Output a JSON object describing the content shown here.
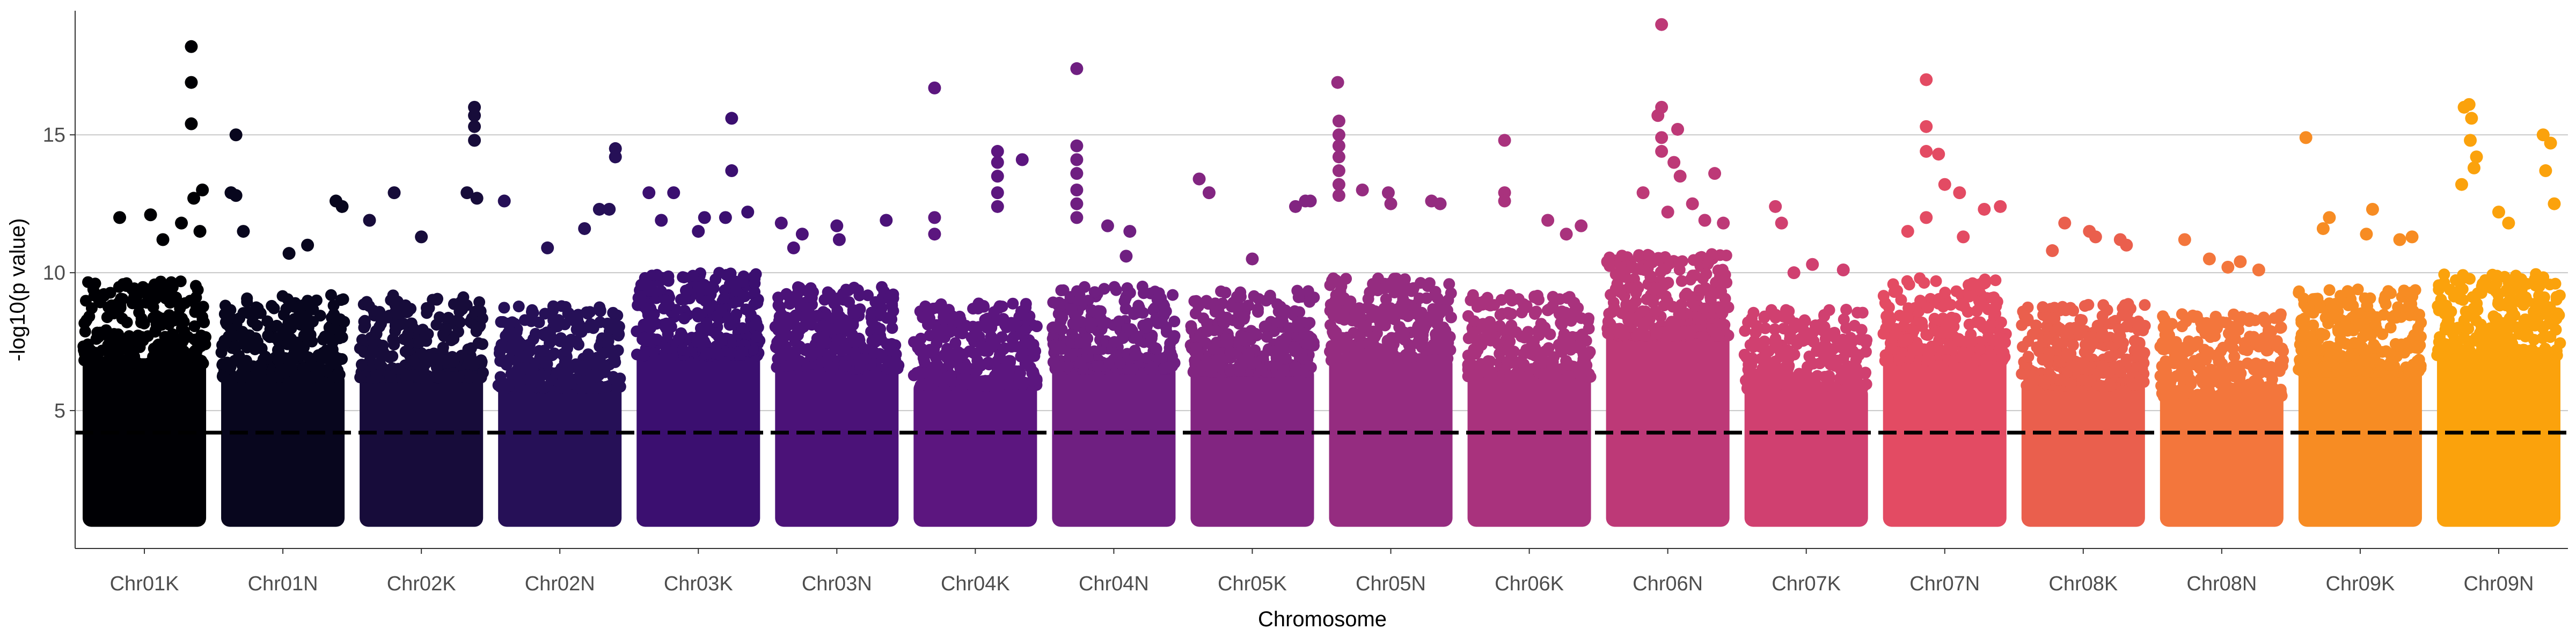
{
  "chart_data": {
    "type": "scatter",
    "subtype": "manhattan",
    "title": "",
    "xlabel": "Chromosome",
    "ylabel": "-log10(p value)",
    "ylim": [
      0,
      19.5
    ],
    "yticks": [
      5,
      10,
      15
    ],
    "grid": {
      "horizontal_major": true,
      "vertical": false
    },
    "legend": "none",
    "threshold": {
      "value": 4.2,
      "style": "dashed",
      "color": "#000000"
    },
    "categories": [
      "Chr01K",
      "Chr01N",
      "Chr02K",
      "Chr02N",
      "Chr03K",
      "Chr03N",
      "Chr04K",
      "Chr04N",
      "Chr05K",
      "Chr05N",
      "Chr06K",
      "Chr06N",
      "Chr07K",
      "Chr07N",
      "Chr08K",
      "Chr08N",
      "Chr09K",
      "Chr09N"
    ],
    "series": [
      {
        "category": "Chr01K",
        "color": "#000004",
        "band_top": 9.5,
        "floor": 1.0,
        "peaks": [
          [
            0.88,
            18.2
          ],
          [
            0.88,
            16.9
          ],
          [
            0.88,
            15.4
          ],
          [
            0.55,
            12.1
          ],
          [
            0.9,
            12.7
          ],
          [
            0.97,
            13.0
          ],
          [
            0.8,
            11.8
          ],
          [
            0.3,
            12.0
          ],
          [
            0.65,
            11.2
          ],
          [
            0.95,
            11.5
          ]
        ]
      },
      {
        "category": "Chr01N",
        "color": "#08061e",
        "band_top": 9.0,
        "floor": 1.0,
        "peaks": [
          [
            0.12,
            15.0
          ],
          [
            0.08,
            12.9
          ],
          [
            0.12,
            12.8
          ],
          [
            0.18,
            11.5
          ],
          [
            0.93,
            12.6
          ],
          [
            0.98,
            12.4
          ],
          [
            0.55,
            10.7
          ],
          [
            0.7,
            11.0
          ]
        ]
      },
      {
        "category": "Chr02K",
        "color": "#170c3a",
        "band_top": 9.0,
        "floor": 1.0,
        "peaks": [
          [
            0.93,
            16.0
          ],
          [
            0.93,
            15.7
          ],
          [
            0.93,
            15.3
          ],
          [
            0.93,
            14.8
          ],
          [
            0.28,
            12.9
          ],
          [
            0.08,
            11.9
          ],
          [
            0.87,
            12.9
          ],
          [
            0.95,
            12.7
          ],
          [
            0.5,
            11.3
          ]
        ]
      },
      {
        "category": "Chr02N",
        "color": "#261057",
        "band_top": 8.6,
        "floor": 1.0,
        "peaks": [
          [
            0.95,
            14.5
          ],
          [
            0.95,
            14.2
          ],
          [
            0.05,
            12.6
          ],
          [
            0.82,
            12.3
          ],
          [
            0.9,
            12.3
          ],
          [
            0.7,
            11.6
          ],
          [
            0.4,
            10.9
          ]
        ]
      },
      {
        "category": "Chr03K",
        "color": "#3b0f70",
        "band_top": 9.8,
        "floor": 1.0,
        "peaks": [
          [
            0.77,
            15.6
          ],
          [
            0.77,
            13.7
          ],
          [
            0.1,
            12.9
          ],
          [
            0.3,
            12.9
          ],
          [
            0.55,
            12.0
          ],
          [
            0.72,
            12.0
          ],
          [
            0.9,
            12.2
          ],
          [
            0.5,
            11.5
          ],
          [
            0.2,
            11.9
          ]
        ]
      },
      {
        "category": "Chr03N",
        "color": "#4b1278",
        "band_top": 9.3,
        "floor": 1.0,
        "peaks": [
          [
            0.05,
            11.8
          ],
          [
            0.22,
            11.4
          ],
          [
            0.5,
            11.7
          ],
          [
            0.9,
            11.9
          ],
          [
            0.52,
            11.2
          ],
          [
            0.15,
            10.9
          ]
        ]
      },
      {
        "category": "Chr04K",
        "color": "#5c167f",
        "band_top": 8.7,
        "floor": 1.0,
        "peaks": [
          [
            0.17,
            16.7
          ],
          [
            0.68,
            14.4
          ],
          [
            0.68,
            14.0
          ],
          [
            0.68,
            13.5
          ],
          [
            0.68,
            12.9
          ],
          [
            0.68,
            12.4
          ],
          [
            0.88,
            14.1
          ],
          [
            0.17,
            12.0
          ],
          [
            0.17,
            11.4
          ]
        ]
      },
      {
        "category": "Chr04N",
        "color": "#6f1f81",
        "band_top": 9.3,
        "floor": 1.0,
        "peaks": [
          [
            0.2,
            17.4
          ],
          [
            0.2,
            14.6
          ],
          [
            0.2,
            14.1
          ],
          [
            0.2,
            13.6
          ],
          [
            0.2,
            13.0
          ],
          [
            0.2,
            12.5
          ],
          [
            0.2,
            12.0
          ],
          [
            0.45,
            11.7
          ],
          [
            0.63,
            11.5
          ],
          [
            0.6,
            10.6
          ]
        ]
      },
      {
        "category": "Chr05K",
        "color": "#822581",
        "band_top": 9.2,
        "floor": 1.0,
        "peaks": [
          [
            0.07,
            13.4
          ],
          [
            0.15,
            12.9
          ],
          [
            0.93,
            12.6
          ],
          [
            0.97,
            12.6
          ],
          [
            0.85,
            12.4
          ],
          [
            0.5,
            10.5
          ]
        ]
      },
      {
        "category": "Chr05N",
        "color": "#952c80",
        "band_top": 9.6,
        "floor": 1.0,
        "peaks": [
          [
            0.07,
            16.9
          ],
          [
            0.08,
            15.5
          ],
          [
            0.08,
            15.0
          ],
          [
            0.08,
            14.6
          ],
          [
            0.08,
            14.2
          ],
          [
            0.08,
            13.7
          ],
          [
            0.08,
            13.2
          ],
          [
            0.08,
            12.8
          ],
          [
            0.27,
            13.0
          ],
          [
            0.48,
            12.9
          ],
          [
            0.5,
            12.5
          ],
          [
            0.83,
            12.6
          ],
          [
            0.9,
            12.5
          ]
        ]
      },
      {
        "category": "Chr06K",
        "color": "#a9327d",
        "band_top": 9.0,
        "floor": 1.0,
        "peaks": [
          [
            0.3,
            14.8
          ],
          [
            0.3,
            12.9
          ],
          [
            0.3,
            12.6
          ],
          [
            0.65,
            11.9
          ],
          [
            0.8,
            11.4
          ],
          [
            0.92,
            11.7
          ]
        ]
      },
      {
        "category": "Chr06N",
        "color": "#bd3977",
        "band_top": 10.5,
        "floor": 1.0,
        "peaks": [
          [
            0.45,
            19.0
          ],
          [
            0.45,
            16.0
          ],
          [
            0.42,
            15.7
          ],
          [
            0.58,
            15.2
          ],
          [
            0.45,
            14.9
          ],
          [
            0.45,
            14.4
          ],
          [
            0.55,
            14.0
          ],
          [
            0.6,
            13.5
          ],
          [
            0.88,
            13.6
          ],
          [
            0.3,
            12.9
          ],
          [
            0.7,
            12.5
          ],
          [
            0.8,
            11.9
          ],
          [
            0.95,
            11.8
          ],
          [
            0.5,
            12.2
          ]
        ]
      },
      {
        "category": "Chr07K",
        "color": "#d04070",
        "band_top": 8.5,
        "floor": 1.0,
        "peaks": [
          [
            0.25,
            12.4
          ],
          [
            0.3,
            11.8
          ],
          [
            0.55,
            10.3
          ],
          [
            0.8,
            10.1
          ],
          [
            0.4,
            10.0
          ]
        ]
      },
      {
        "category": "Chr07N",
        "color": "#e34b63",
        "band_top": 9.6,
        "floor": 1.0,
        "peaks": [
          [
            0.35,
            17.0
          ],
          [
            0.35,
            15.3
          ],
          [
            0.35,
            14.4
          ],
          [
            0.45,
            14.3
          ],
          [
            0.5,
            13.2
          ],
          [
            0.62,
            12.9
          ],
          [
            0.82,
            12.3
          ],
          [
            0.95,
            12.4
          ],
          [
            0.35,
            12.0
          ],
          [
            0.2,
            11.5
          ],
          [
            0.65,
            11.3
          ]
        ]
      },
      {
        "category": "Chr08K",
        "color": "#ea5f4d",
        "band_top": 8.7,
        "floor": 1.0,
        "peaks": [
          [
            0.35,
            11.8
          ],
          [
            0.55,
            11.5
          ],
          [
            0.6,
            11.3
          ],
          [
            0.8,
            11.2
          ],
          [
            0.25,
            10.8
          ],
          [
            0.85,
            11.0
          ]
        ]
      },
      {
        "category": "Chr08N",
        "color": "#f3763c",
        "band_top": 8.3,
        "floor": 1.0,
        "peaks": [
          [
            0.2,
            11.2
          ],
          [
            0.4,
            10.5
          ],
          [
            0.65,
            10.4
          ],
          [
            0.55,
            10.2
          ],
          [
            0.8,
            10.1
          ]
        ]
      },
      {
        "category": "Chr09K",
        "color": "#f78c23",
        "band_top": 9.2,
        "floor": 1.0,
        "peaks": [
          [
            0.06,
            14.9
          ],
          [
            0.25,
            12.0
          ],
          [
            0.6,
            12.3
          ],
          [
            0.55,
            11.4
          ],
          [
            0.82,
            11.2
          ],
          [
            0.92,
            11.3
          ],
          [
            0.2,
            11.6
          ]
        ]
      },
      {
        "category": "Chr09N",
        "color": "#fba20c",
        "band_top": 9.8,
        "floor": 1.0,
        "peaks": [
          [
            0.26,
            16.1
          ],
          [
            0.22,
            16.0
          ],
          [
            0.28,
            15.6
          ],
          [
            0.27,
            14.8
          ],
          [
            0.32,
            14.2
          ],
          [
            0.3,
            13.8
          ],
          [
            0.86,
            15.0
          ],
          [
            0.92,
            14.7
          ],
          [
            0.88,
            13.7
          ],
          [
            0.5,
            12.2
          ],
          [
            0.58,
            11.8
          ],
          [
            0.95,
            12.5
          ],
          [
            0.2,
            13.2
          ]
        ]
      }
    ]
  }
}
